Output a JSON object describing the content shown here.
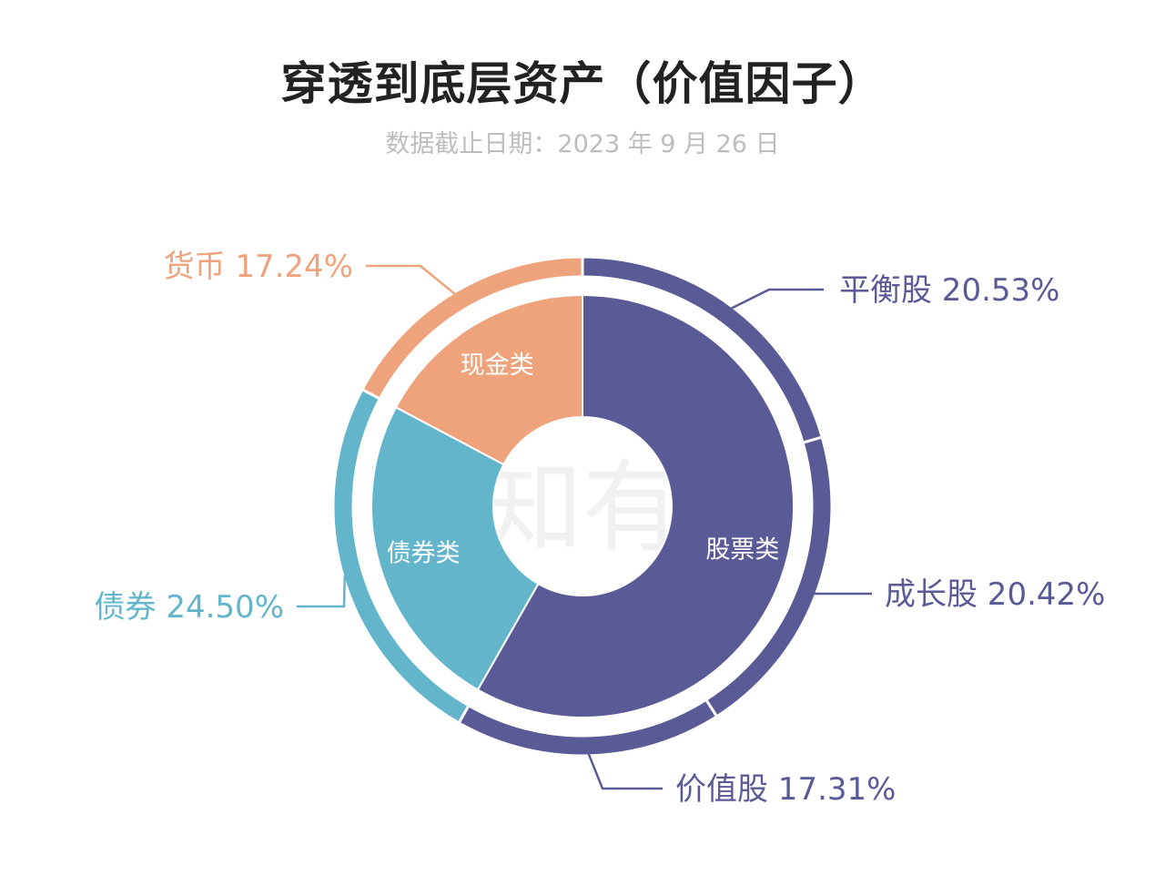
{
  "title": "穿透到底层资产（价值因子）",
  "subtitle": "数据截止日期：2023 年 9 月 26 日",
  "watermark": "有知有行",
  "colors": {
    "equity": "#5a5b96",
    "bond": "#62b5cb",
    "cash": "#eea37c",
    "title": "#222222",
    "subtitle": "#bdbdbd"
  },
  "chart_data": {
    "type": "pie",
    "style": "nested-donut",
    "inner_ring": {
      "categories": [
        "股票类",
        "债券类",
        "现金类"
      ],
      "values": [
        58.26,
        24.5,
        17.24
      ],
      "colors": [
        "#5a5b96",
        "#62b5cb",
        "#eea37c"
      ]
    },
    "outer_ring": {
      "categories": [
        "平衡股",
        "成长股",
        "价值股",
        "债券",
        "货币"
      ],
      "values": [
        20.53,
        20.42,
        17.31,
        24.5,
        17.24
      ],
      "value_labels": [
        "20.53%",
        "20.42%",
        "17.31%",
        "24.50%",
        "17.24%"
      ],
      "colors": [
        "#5a5b96",
        "#5a5b96",
        "#5a5b96",
        "#62b5cb",
        "#eea37c"
      ]
    }
  }
}
